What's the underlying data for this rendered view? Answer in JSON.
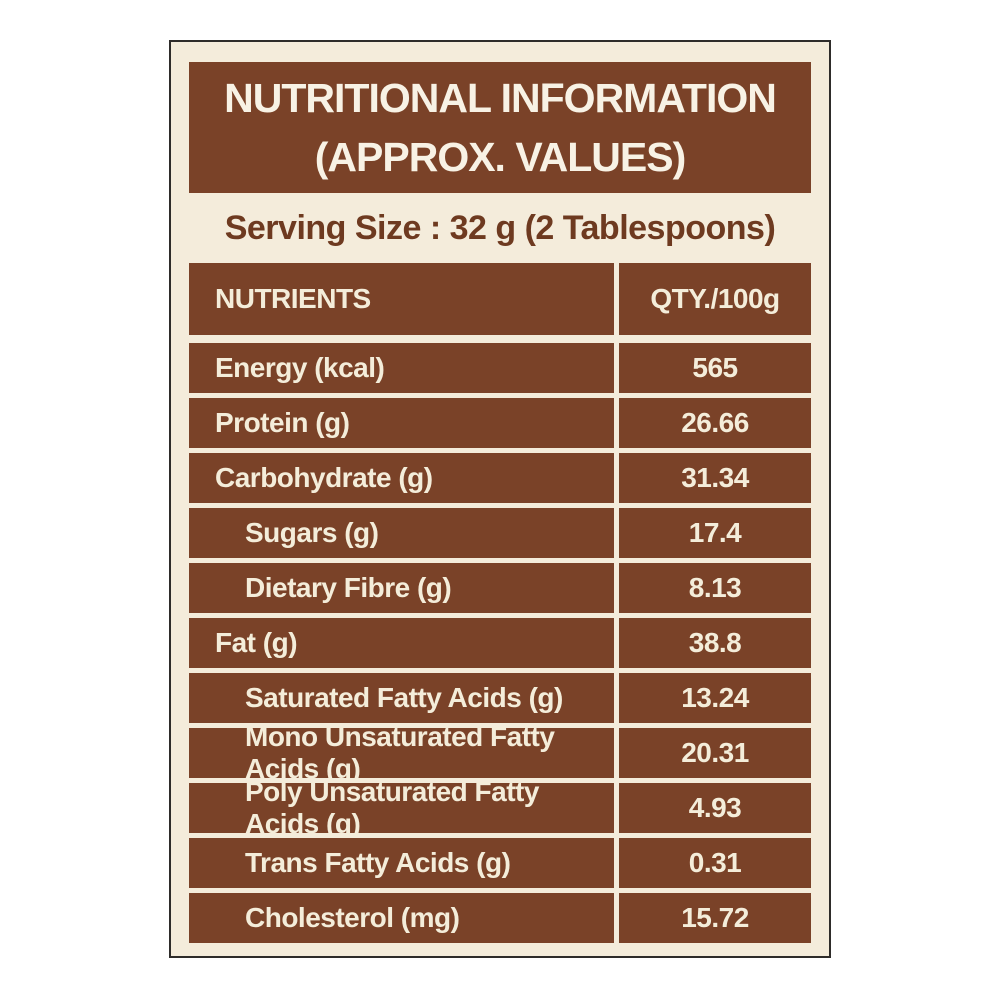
{
  "header": {
    "title_line1": "NUTRITIONAL INFORMATION",
    "title_line2": "(APPROX. VALUES)",
    "serving_size": "Serving Size : 32 g (2 Tablespoons)"
  },
  "table": {
    "columns": {
      "nutrients": "NUTRIENTS",
      "qty": "QTY./100g"
    },
    "rows": [
      {
        "label": "Energy (kcal)",
        "value": "565",
        "indent": false
      },
      {
        "label": "Protein (g)",
        "value": "26.66",
        "indent": false
      },
      {
        "label": "Carbohydrate (g)",
        "value": "31.34",
        "indent": false
      },
      {
        "label": "Sugars (g)",
        "value": "17.4",
        "indent": true
      },
      {
        "label": "Dietary Fibre (g)",
        "value": "8.13",
        "indent": true
      },
      {
        "label": "Fat (g)",
        "value": "38.8",
        "indent": false
      },
      {
        "label": "Saturated Fatty Acids (g)",
        "value": "13.24",
        "indent": true
      },
      {
        "label": "Mono Unsaturated Fatty Acids (g)",
        "value": "20.31",
        "indent": true
      },
      {
        "label": "Poly Unsaturated Fatty Acids (g)",
        "value": "4.93",
        "indent": true
      },
      {
        "label": "Trans Fatty Acids (g)",
        "value": "0.31",
        "indent": true
      },
      {
        "label": "Cholesterol (mg)",
        "value": "15.72",
        "indent": true
      }
    ]
  },
  "colors": {
    "brown": "#7a4228",
    "cream": "#f4ecdb",
    "border_dark": "#2e2c2a",
    "text_light": "#f4edda",
    "text_brown": "#6e3a20"
  }
}
